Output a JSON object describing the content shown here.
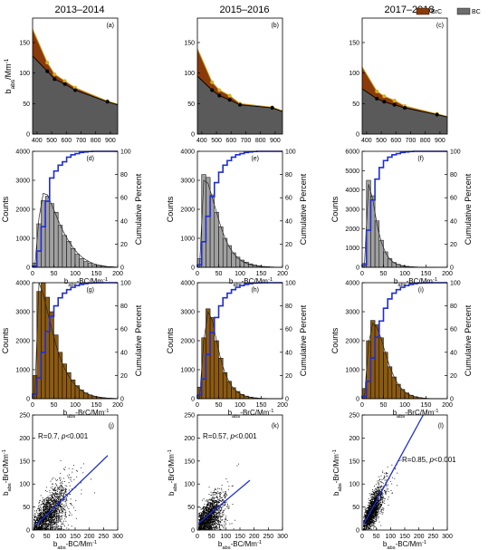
{
  "column_titles": [
    "2013–2014",
    "2015–2016",
    "2017–2018"
  ],
  "legend": {
    "items": [
      {
        "label": "BrC",
        "color": "#8B3A0A"
      },
      {
        "label": "BC",
        "color": "#6E6E6E"
      }
    ],
    "placement": "top-right"
  },
  "axis_text": {
    "row1_ylabel": "b",
    "row1_ylabel_sub": "abs",
    "row1_ylabel_unit": "/Mm",
    "row1_ylabel_sup": "-1",
    "counts": "Counts",
    "cumulative": "Cumulative Percent",
    "hist_xlabel_pre": "b",
    "hist_xlabel_sub": "abs",
    "hist_xlabel_bc": "-BC/Mm",
    "hist_xlabel_brc": "-BrC/Mm",
    "hist_xlabel_sup": "-1",
    "scatter_ylabel_pre": "b",
    "scatter_ylabel_sub": "abs",
    "scatter_ylabel_rest": "-BrC/Mm",
    "scatter_ylabel_sup": "-1",
    "scatter_xlabel_pre": "b",
    "scatter_xlabel_sub": "abs",
    "scatter_xlabel_rest": "-BC/Mm",
    "scatter_xlabel_sup": "-1"
  },
  "panel_letters": [
    "(a)",
    "(b)",
    "(c)",
    "(d)",
    "(e)",
    "(f)",
    "(g)",
    "(h)",
    "(i)",
    "(j)",
    "(k)",
    "(l)"
  ],
  "scatter_annotations": [
    {
      "r": "R=0.7, ",
      "p": "p",
      "rest": "<0.001"
    },
    {
      "r": "R=0.57, ",
      "p": "p",
      "rest": "<0.001"
    },
    {
      "r": "R=0.85, ",
      "p": "p",
      "rest": "<0.001"
    }
  ],
  "chart_data": [
    {
      "panel": "(a)",
      "type": "area",
      "x": [
        370,
        470,
        520,
        590,
        660,
        880,
        950
      ],
      "xticks": [
        400,
        500,
        600,
        700,
        800,
        900
      ],
      "yticks": [
        0,
        50,
        100,
        150
      ],
      "xlim": [
        370,
        950
      ],
      "ylim": [
        0,
        190
      ],
      "series": [
        {
          "name": "BC",
          "values": [
            128,
            103,
            90,
            82,
            72,
            53,
            48
          ]
        },
        {
          "name": "BrC",
          "values": [
            172,
            117,
            98,
            87,
            76,
            54,
            49
          ]
        }
      ]
    },
    {
      "panel": "(b)",
      "type": "area",
      "x": [
        370,
        470,
        520,
        590,
        660,
        880,
        950
      ],
      "xticks": [
        400,
        500,
        600,
        700,
        800,
        900
      ],
      "yticks": [
        0,
        50,
        100,
        150
      ],
      "xlim": [
        370,
        950
      ],
      "ylim": [
        0,
        190
      ],
      "series": [
        {
          "name": "BC",
          "values": [
            95,
            72,
            63,
            56,
            48,
            43,
            37
          ]
        },
        {
          "name": "BrC",
          "values": [
            140,
            85,
            72,
            63,
            50,
            44,
            38
          ]
        }
      ]
    },
    {
      "panel": "(c)",
      "type": "area",
      "x": [
        370,
        470,
        520,
        590,
        660,
        880,
        950
      ],
      "xticks": [
        400,
        500,
        600,
        700,
        800,
        900
      ],
      "yticks": [
        0,
        50,
        100,
        150
      ],
      "xlim": [
        370,
        950
      ],
      "ylim": [
        0,
        190
      ],
      "series": [
        {
          "name": "BC",
          "values": [
            74,
            58,
            53,
            48,
            43,
            32,
            28
          ]
        },
        {
          "name": "BrC",
          "values": [
            110,
            70,
            62,
            55,
            46,
            33,
            29
          ]
        }
      ]
    },
    {
      "panel": "(d)",
      "type": "bar",
      "bin_width": 10,
      "bin_starts": [
        0,
        10,
        20,
        30,
        40,
        50,
        60,
        70,
        80,
        90,
        100,
        110,
        120,
        130,
        140,
        150,
        160,
        170,
        180,
        190
      ],
      "values": [
        150,
        1500,
        2300,
        2450,
        2200,
        1900,
        1450,
        1100,
        900,
        650,
        450,
        300,
        200,
        140,
        90,
        60,
        40,
        20,
        10,
        5
      ],
      "fit_y": [
        0,
        1700,
        2550,
        2500,
        2150,
        1800,
        1450,
        1150,
        900,
        680,
        500,
        360,
        260,
        180,
        120,
        80,
        50,
        30,
        20,
        10
      ],
      "cumulative_percent": [
        1,
        14,
        35,
        57,
        77,
        83,
        88,
        91,
        95,
        97,
        98,
        99,
        99.5,
        99.8,
        100,
        100,
        100,
        100,
        100,
        100
      ],
      "xticks": [
        0,
        50,
        100,
        150,
        200
      ],
      "yticks": [
        0,
        1000,
        2000,
        3000,
        4000
      ],
      "y2ticks": [
        0,
        20,
        40,
        60,
        80,
        100
      ],
      "xlim": [
        0,
        200
      ],
      "ylim": [
        0,
        4000
      ],
      "y2lim": [
        0,
        100
      ],
      "bar_color": "#A0A0A0"
    },
    {
      "panel": "(e)",
      "type": "bar",
      "bin_width": 10,
      "bin_starts": [
        0,
        10,
        20,
        30,
        40,
        50,
        60,
        70,
        80,
        90,
        100,
        110,
        120,
        130,
        140,
        150,
        160,
        170,
        180,
        190
      ],
      "values": [
        300,
        3200,
        3100,
        2500,
        1900,
        1400,
        1000,
        750,
        500,
        350,
        250,
        180,
        120,
        80,
        50,
        30,
        20,
        10,
        5,
        2
      ],
      "fit_y": [
        0,
        3000,
        2900,
        2400,
        1900,
        1400,
        1000,
        700,
        480,
        320,
        210,
        140,
        90,
        60,
        40,
        25,
        15,
        10,
        5,
        2
      ],
      "cumulative_percent": [
        2,
        22,
        44,
        61,
        73,
        82,
        88,
        92,
        95,
        97,
        98,
        99,
        99.5,
        99.8,
        100,
        100,
        100,
        100,
        100,
        100
      ],
      "xticks": [
        0,
        50,
        100,
        150,
        200
      ],
      "yticks": [
        0,
        1000,
        2000,
        3000,
        4000
      ],
      "y2ticks": [
        0,
        20,
        40,
        60,
        80,
        100
      ],
      "xlim": [
        0,
        200
      ],
      "ylim": [
        0,
        4000
      ],
      "y2lim": [
        0,
        100
      ],
      "bar_color": "#A0A0A0"
    },
    {
      "panel": "(f)",
      "type": "bar",
      "bin_width": 10,
      "bin_starts": [
        0,
        10,
        20,
        30,
        40,
        50,
        60,
        70,
        80,
        90,
        100,
        110,
        120,
        130,
        140,
        150,
        160,
        170,
        180,
        190
      ],
      "values": [
        200,
        4500,
        3700,
        2400,
        1400,
        800,
        450,
        250,
        150,
        90,
        50,
        30,
        20,
        10,
        5,
        2,
        1,
        0,
        0,
        0
      ],
      "fit_y": [
        0,
        4300,
        3500,
        2200,
        1300,
        750,
        420,
        230,
        130,
        70,
        40,
        20,
        10,
        5,
        3,
        1,
        0,
        0,
        0,
        0
      ],
      "cumulative_percent": [
        2,
        32,
        58,
        76,
        86,
        92,
        95,
        97,
        98,
        99,
        99.5,
        99.8,
        100,
        100,
        100,
        100,
        100,
        100,
        100,
        100
      ],
      "xticks": [
        0,
        50,
        100,
        150,
        200
      ],
      "yticks": [
        0,
        1000,
        2000,
        3000,
        4000,
        5000,
        6000
      ],
      "y2ticks": [
        0,
        20,
        40,
        60,
        80,
        100
      ],
      "xlim": [
        0,
        200
      ],
      "ylim": [
        0,
        6000
      ],
      "y2lim": [
        0,
        100
      ],
      "bar_color": "#A0A0A0"
    },
    {
      "panel": "(g)",
      "type": "bar",
      "bin_width": 10,
      "bin_starts": [
        0,
        10,
        20,
        30,
        40,
        50,
        60,
        70,
        80,
        90,
        100,
        110,
        120,
        130,
        140,
        150,
        160,
        170,
        180,
        190
      ],
      "values": [
        800,
        3700,
        4000,
        3500,
        3000,
        2200,
        1600,
        1200,
        900,
        650,
        450,
        300,
        200,
        130,
        80,
        50,
        30,
        15,
        8,
        4
      ],
      "fit_y": [
        0,
        4000,
        3600,
        3000,
        2400,
        1850,
        1400,
        1050,
        780,
        560,
        400,
        280,
        190,
        130,
        90,
        60,
        40,
        25,
        15,
        8
      ],
      "cumulative_percent": [
        4,
        18,
        40,
        58,
        71,
        80,
        87,
        91,
        94,
        96,
        97.5,
        98.5,
        99.2,
        99.6,
        99.8,
        100,
        100,
        100,
        100,
        100
      ],
      "xticks": [
        0,
        50,
        100,
        150,
        200
      ],
      "yticks": [
        0,
        1000,
        2000,
        3000,
        4000
      ],
      "y2ticks": [
        0,
        20,
        40,
        60,
        80,
        100
      ],
      "xlim": [
        0,
        200
      ],
      "ylim": [
        0,
        4000
      ],
      "y2lim": [
        0,
        100
      ],
      "bar_color": "#8B5A12"
    },
    {
      "panel": "(h)",
      "type": "bar",
      "bin_width": 10,
      "bin_starts": [
        0,
        10,
        20,
        30,
        40,
        50,
        60,
        70,
        80,
        90,
        100,
        110,
        120,
        130,
        140,
        150,
        160,
        170,
        180,
        190
      ],
      "values": [
        400,
        2100,
        3100,
        2800,
        2000,
        1400,
        900,
        600,
        380,
        250,
        150,
        90,
        55,
        30,
        15,
        8,
        4,
        2,
        1,
        0
      ],
      "fit_y": [
        0,
        2000,
        3000,
        2700,
        2000,
        1350,
        880,
        560,
        350,
        220,
        130,
        80,
        50,
        30,
        15,
        8,
        4,
        2,
        1,
        0
      ],
      "cumulative_percent": [
        3,
        17,
        38,
        57,
        70,
        80,
        87,
        91,
        94,
        96,
        97.5,
        98.5,
        99.2,
        99.6,
        99.8,
        100,
        100,
        100,
        100,
        100
      ],
      "xticks": [
        0,
        50,
        100,
        150,
        200
      ],
      "yticks": [
        0,
        1000,
        2000,
        3000,
        4000
      ],
      "y2ticks": [
        0,
        20,
        40,
        60,
        80,
        100
      ],
      "xlim": [
        0,
        200
      ],
      "ylim": [
        0,
        4000
      ],
      "y2lim": [
        0,
        100
      ],
      "bar_color": "#8B5A12"
    },
    {
      "panel": "(i)",
      "type": "bar",
      "bin_width": 10,
      "bin_starts": [
        0,
        10,
        20,
        30,
        40,
        50,
        60,
        70,
        80,
        90,
        100,
        110,
        120,
        130,
        140,
        150,
        160,
        170,
        180,
        190
      ],
      "values": [
        350,
        2000,
        2700,
        2550,
        2100,
        1600,
        1100,
        750,
        500,
        320,
        200,
        120,
        70,
        40,
        20,
        10,
        5,
        2,
        1,
        0
      ],
      "fit_y": [
        0,
        1900,
        2600,
        2450,
        2050,
        1550,
        1100,
        750,
        480,
        300,
        180,
        110,
        65,
        35,
        20,
        10,
        5,
        2,
        1,
        0
      ],
      "cumulative_percent": [
        2,
        15,
        35,
        53,
        67,
        78,
        86,
        91,
        94,
        96,
        97.5,
        98.5,
        99.2,
        99.6,
        99.8,
        100,
        100,
        100,
        100,
        100
      ],
      "xticks": [
        0,
        50,
        100,
        150,
        200
      ],
      "yticks": [
        0,
        1000,
        2000,
        3000,
        4000
      ],
      "y2ticks": [
        0,
        20,
        40,
        60,
        80,
        100
      ],
      "xlim": [
        0,
        200
      ],
      "ylim": [
        0,
        4000
      ],
      "y2lim": [
        0,
        100
      ],
      "bar_color": "#8B5A12"
    },
    {
      "panel": "(j)",
      "type": "scatter",
      "xticks": [
        0,
        50,
        100,
        150,
        200,
        250,
        300
      ],
      "yticks": [
        0,
        50,
        100,
        150,
        200,
        250
      ],
      "xlim": [
        0,
        300
      ],
      "ylim": [
        0,
        250
      ],
      "cloud": {
        "x_mean": 55,
        "x_spread": 45,
        "slope": 0.55,
        "intercept": 5,
        "noise": 22,
        "n": 1800
      },
      "fit_line": {
        "x": [
          10,
          265
        ],
        "y": [
          10,
          162
        ]
      }
    },
    {
      "panel": "(k)",
      "type": "scatter",
      "xticks": [
        0,
        50,
        100,
        150,
        200,
        250,
        300
      ],
      "yticks": [
        0,
        50,
        100,
        150,
        200,
        250
      ],
      "xlim": [
        0,
        300
      ],
      "ylim": [
        0,
        250
      ],
      "cloud": {
        "x_mean": 40,
        "x_spread": 35,
        "slope": 0.45,
        "intercept": 12,
        "noise": 20,
        "n": 1700
      },
      "fit_line": {
        "x": [
          5,
          185
        ],
        "y": [
          15,
          108
        ]
      }
    },
    {
      "panel": "(l)",
      "type": "scatter",
      "xticks": [
        0,
        50,
        100,
        150,
        200,
        250,
        300
      ],
      "yticks": [
        0,
        50,
        100,
        150,
        200,
        250
      ],
      "xlim": [
        0,
        300
      ],
      "ylim": [
        0,
        250
      ],
      "cloud": {
        "x_mean": 35,
        "x_spread": 28,
        "slope": 1.05,
        "intercept": 8,
        "noise": 18,
        "n": 1600
      },
      "fit_line": {
        "x": [
          5,
          215
        ],
        "y": [
          12,
          250
        ]
      }
    }
  ]
}
